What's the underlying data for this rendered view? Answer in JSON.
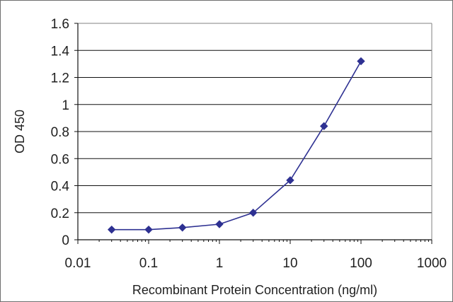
{
  "chart_data": {
    "type": "line",
    "title": "",
    "xlabel": "Recombinant Protein Concentration (ng/ml)",
    "ylabel": "OD 450",
    "x_scale": "log",
    "xlim": [
      0.01,
      1000
    ],
    "ylim": [
      0,
      1.6
    ],
    "x_ticks": [
      0.01,
      0.1,
      1,
      10,
      100,
      1000
    ],
    "x_tick_labels": [
      "0.01",
      "0.1",
      "1",
      "10",
      "100",
      "1000"
    ],
    "y_ticks": [
      0,
      0.2,
      0.4,
      0.6,
      0.8,
      1.0,
      1.2,
      1.4,
      1.6
    ],
    "y_tick_labels": [
      "0",
      "0.2",
      "0.4",
      "0.6",
      "0.8",
      "1",
      "1.2",
      "1.4",
      "1.6"
    ],
    "grid": "horizontal",
    "legend": "none",
    "series": [
      {
        "x": [
          0.03,
          0.1,
          0.3,
          1,
          3,
          10,
          30,
          100
        ],
        "values": [
          0.075,
          0.075,
          0.09,
          0.115,
          0.2,
          0.44,
          0.84,
          1.32
        ],
        "color": "#2e3192"
      }
    ]
  }
}
